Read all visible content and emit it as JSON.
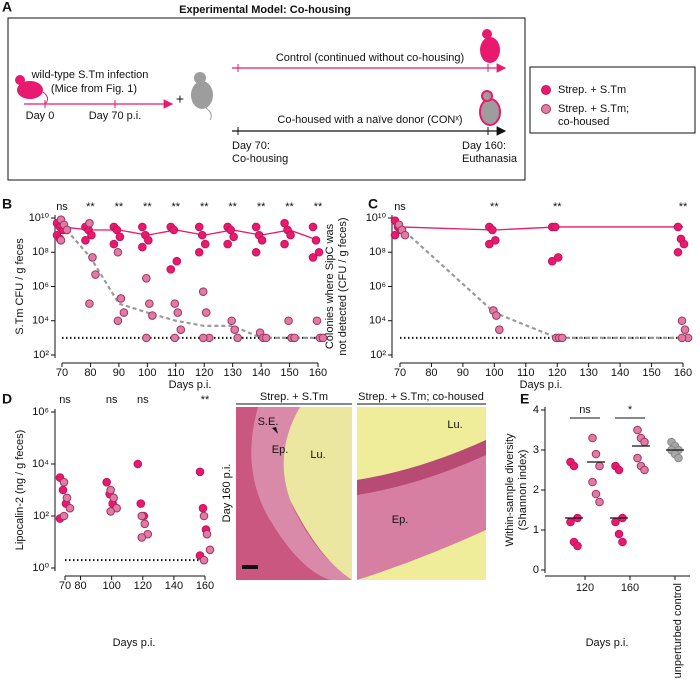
{
  "figure": {
    "panel_labels": [
      "A",
      "B",
      "C",
      "D",
      "E"
    ],
    "panel_a": {
      "title": "Experimental Model: Co-housing",
      "infection": "wild-type S.Tm infection",
      "mice_from": "(Mice from Fig. 1)",
      "day0": "Day 0",
      "day70": "Day 70 p.i.",
      "plus": "+",
      "control": "Control (continued without co-housing)",
      "cohoused": "Co-housed with a naïve donor (CONˣ)",
      "start": [
        "Day 70:",
        "Co-housing"
      ],
      "end": [
        "Day 160:",
        "Euthanasia"
      ]
    },
    "legend": [
      {
        "label": [
          "Strep. + S.Tm"
        ],
        "color": "#e8196e",
        "edge": "#c4145c"
      },
      {
        "label": [
          "Strep. + S.Tm;",
          "co-housed"
        ],
        "color": "#e07ba3",
        "edge": "#9c3563"
      }
    ],
    "histology": {
      "titles": [
        "Strep. + S.Tm",
        "Strep. + S.Tm; co-housed"
      ],
      "side_label": "Day 160 p.i.",
      "left_labels": [
        "S.E.",
        "Ep.",
        "Lu."
      ],
      "right_labels": [
        "Lu.",
        "Ep."
      ]
    }
  },
  "chart_data": [
    {
      "type": "scatter",
      "ylabel": [
        "S.Tm CFU / g feces"
      ],
      "xlabel": "Days p.i.",
      "xlim": [
        70,
        160
      ],
      "xticks": [
        70,
        80,
        90,
        100,
        110,
        120,
        130,
        140,
        150,
        160
      ],
      "ylim": [
        100,
        10000000000
      ],
      "yscale": "log",
      "yticks": [
        {
          "value": 100,
          "label": "10²"
        },
        {
          "value": 10000,
          "label": "10⁴"
        },
        {
          "value": 1000000,
          "label": "10⁶"
        },
        {
          "value": 100000000,
          "label": "10⁸"
        },
        {
          "value": 10000000000,
          "label": "10¹⁰"
        }
      ],
      "detection_limit": 1000,
      "significance": {
        "x": [
          70,
          80,
          90,
          100,
          110,
          120,
          130,
          140,
          150,
          160
        ],
        "labels": [
          "ns",
          "**",
          "**",
          "**",
          "**",
          "**",
          "**",
          "**",
          "**",
          "**"
        ]
      },
      "series": [
        {
          "color": "#e8196e",
          "edge": "#c4145c",
          "x": [
            70,
            70,
            70,
            70,
            70,
            80,
            80,
            80,
            80,
            90,
            90,
            90,
            90,
            100,
            100,
            100,
            100,
            110,
            110,
            110,
            110,
            120,
            120,
            120,
            120,
            130,
            130,
            130,
            130,
            140,
            140,
            140,
            140,
            150,
            150,
            150,
            150,
            160,
            160,
            160,
            160
          ],
          "values": [
            5000000000,
            3000000000,
            2000000000,
            1000000000,
            600000000,
            3000000000,
            2000000000,
            1000000000,
            500000000,
            3000000000,
            2000000000,
            800000000,
            300000000,
            3000000000,
            1000000000,
            500000000,
            200000000,
            3000000000,
            2000000000,
            30000000,
            10000000,
            3000000000,
            1000000000,
            300000000,
            100000000,
            3000000000,
            2000000000,
            800000000,
            300000000,
            3000000000,
            1000000000,
            500000000,
            100000000,
            5000000000,
            2000000000,
            1000000000,
            300000000,
            3000000000,
            500000000,
            100000000,
            50000000
          ]
        },
        {
          "color": "#e07ba3",
          "edge": "#9c3563",
          "x": [
            70,
            70,
            70,
            70,
            80,
            80,
            80,
            80,
            90,
            90,
            90,
            90,
            100,
            100,
            100,
            100,
            110,
            110,
            110,
            110,
            120,
            120,
            120,
            120,
            130,
            130,
            130,
            140,
            140,
            140,
            150,
            150,
            150,
            160,
            160,
            160
          ],
          "values": [
            8000000000,
            4000000000,
            2000000000,
            500000000,
            5000000000,
            50000000,
            5000000,
            100000,
            100000000,
            200000,
            30000,
            10000,
            3000000,
            100000,
            20000,
            1000,
            100000,
            30000,
            3000,
            1000,
            500000,
            30000,
            1000,
            1000,
            10000,
            3000,
            1000,
            2000,
            1000,
            1000,
            10000,
            1000,
            1000,
            10000,
            1000,
            1000
          ]
        }
      ],
      "medians": [
        {
          "color": "#e8196e",
          "dashed": false,
          "x": [
            70,
            80,
            90,
            100,
            110,
            120,
            130,
            140,
            150,
            160
          ],
          "values": [
            3000000000,
            2000000000,
            2000000000,
            1000000000,
            2000000000,
            1000000000,
            2000000000,
            1000000000,
            2000000000,
            500000000
          ]
        },
        {
          "color": "#9a9a9a",
          "dashed": true,
          "x": [
            70,
            80,
            90,
            100,
            110,
            120,
            130,
            140,
            150,
            160
          ],
          "values": [
            4000000000,
            50000000,
            100000,
            30000,
            10000,
            5000,
            5000,
            1000,
            1000,
            1000
          ]
        }
      ]
    },
    {
      "type": "scatter",
      "ylabel": [
        "Colonies where SipC was",
        "not detected (CFU / g feces)"
      ],
      "xlabel": "Days p.i.",
      "xlim": [
        70,
        160
      ],
      "xticks": [
        70,
        80,
        90,
        100,
        110,
        120,
        130,
        140,
        150,
        160
      ],
      "ylim": [
        100,
        10000000000
      ],
      "yscale": "log",
      "yticks": [
        {
          "value": 100,
          "label": "10²"
        },
        {
          "value": 10000,
          "label": "10⁴"
        },
        {
          "value": 1000000,
          "label": "10⁶"
        },
        {
          "value": 100000000,
          "label": "10⁸"
        },
        {
          "value": 10000000000,
          "label": "10¹⁰"
        }
      ],
      "detection_limit": 1000,
      "significance": {
        "x": [
          70,
          100,
          120,
          160
        ],
        "labels": [
          "ns",
          "**",
          "**",
          "**"
        ]
      },
      "series": [
        {
          "color": "#e8196e",
          "edge": "#c4145c",
          "x": [
            70,
            70,
            70,
            70,
            100,
            100,
            100,
            100,
            120,
            120,
            120,
            120,
            160,
            160,
            160,
            160
          ],
          "values": [
            7000000000,
            3000000000,
            2000000000,
            1000000000,
            3000000000,
            2000000000,
            500000000,
            300000000,
            3000000000,
            3000000000,
            50000000,
            30000000,
            3000000000,
            600000000,
            300000000,
            100000000
          ]
        },
        {
          "color": "#e07ba3",
          "edge": "#9c3563",
          "x": [
            70,
            70,
            70,
            100,
            100,
            100,
            120,
            120,
            120,
            160,
            160,
            160,
            160
          ],
          "values": [
            4000000000,
            2000000000,
            1000000000,
            40000,
            20000,
            3000,
            1000,
            1000,
            1000,
            10000,
            3000,
            1000,
            1000
          ]
        }
      ],
      "medians": [
        {
          "color": "#e8196e",
          "dashed": false,
          "x": [
            70,
            100,
            120,
            160
          ],
          "values": [
            3000000000,
            2000000000,
            3000000000,
            3000000000
          ]
        },
        {
          "color": "#9a9a9a",
          "dashed": true,
          "x": [
            70,
            100,
            120,
            160
          ],
          "values": [
            3000000000,
            30000,
            1000,
            1000
          ]
        }
      ]
    },
    {
      "type": "scatter",
      "ylabel": [
        "Lipocalin-2  (ng / g feces)"
      ],
      "xlabel": "Days p.i.",
      "xlim": [
        70,
        160
      ],
      "xticks": [
        70,
        80,
        100,
        120,
        140,
        160
      ],
      "ylim": [
        1,
        1000000
      ],
      "yscale": "log",
      "yticks": [
        {
          "value": 1,
          "label": "10⁰"
        },
        {
          "value": 100,
          "label": "10²"
        },
        {
          "value": 10000,
          "label": "10⁴"
        },
        {
          "value": 1000000,
          "label": "10⁶"
        }
      ],
      "detection_limit": 2,
      "significance": {
        "x": [
          70,
          100,
          120,
          160
        ],
        "labels": [
          "ns",
          "ns",
          "ns",
          "**"
        ]
      },
      "series": [
        {
          "color": "#e8196e",
          "edge": "#c4145c",
          "x": [
            70,
            70,
            70,
            70,
            100,
            100,
            100,
            120,
            120,
            120,
            160,
            160,
            160,
            160
          ],
          "values": [
            3000,
            1000,
            300,
            80,
            2000,
            700,
            300,
            10000,
            300,
            100,
            5000,
            200,
            30,
            3
          ]
        },
        {
          "color": "#e07ba3",
          "edge": "#9c3563",
          "x": [
            70,
            70,
            70,
            70,
            100,
            100,
            100,
            100,
            120,
            120,
            120,
            120,
            160,
            160,
            160,
            160
          ],
          "values": [
            2000,
            500,
            200,
            100,
            1000,
            500,
            200,
            150,
            100,
            50,
            20,
            15,
            100,
            20,
            5,
            2
          ]
        }
      ],
      "medians": []
    },
    {
      "type": "strip",
      "categories": [
        "120",
        "160",
        "unperturbed control"
      ],
      "xlabel": "Days p.i.",
      "ylabel": [
        "Within-sample diversity",
        "(Shannon index)"
      ],
      "ylim": [
        0,
        4
      ],
      "yticks": [
        0,
        1,
        2,
        3,
        4
      ],
      "significance": {
        "labels": [
          "ns",
          "*"
        ]
      },
      "series": [
        {
          "color": "#e8196e",
          "edge": "#c4145c",
          "values": [
            [
              2.7,
              2.6,
              1.3,
              1.2,
              0.7,
              0.6
            ],
            [
              2.6,
              2.5,
              1.3,
              1.2,
              0.9,
              0.7
            ],
            null
          ],
          "medians": [
            1.3,
            1.3,
            null
          ]
        },
        {
          "color": "#e07ba3",
          "edge": "#9c3563",
          "values": [
            [
              3.3,
              2.9,
              2.6,
              2.2,
              1.9,
              1.7
            ],
            [
              3.5,
              3.3,
              3.2,
              2.8,
              2.6,
              2.5
            ],
            null
          ],
          "medians": [
            2.7,
            3.1,
            null
          ]
        },
        {
          "color": "#a8a8a8",
          "edge": "#8a8a8a",
          "values": [
            null,
            null,
            [
              3.2,
              3.1,
              3.0,
              3.0,
              2.9,
              2.8
            ]
          ],
          "medians": [
            null,
            null,
            3.0
          ]
        }
      ]
    }
  ]
}
